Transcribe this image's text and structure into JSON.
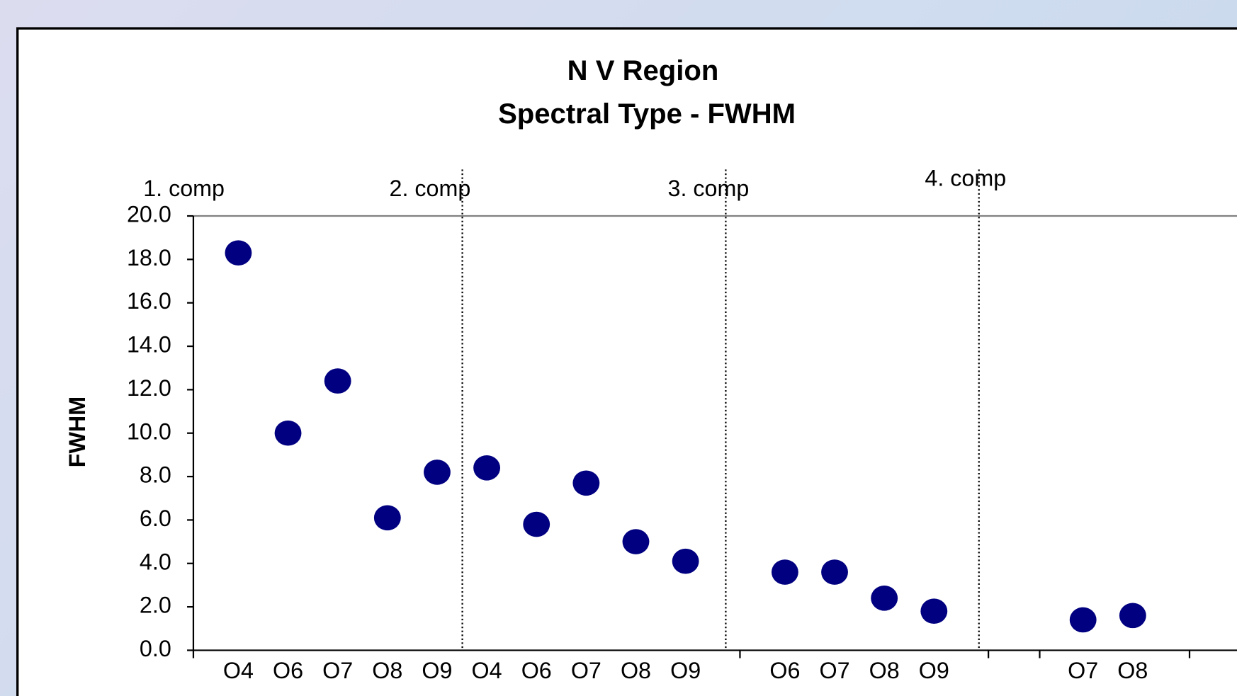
{
  "chart_data": {
    "type": "scatter",
    "title": "N V Region",
    "subtitle": "Spectral Type - FWHM",
    "y_label": "FWHM",
    "annotations": [
      "1. comp",
      "2. comp",
      "3. comp",
      "4. comp"
    ],
    "categories": [
      "O4",
      "O6",
      "O7",
      "O8",
      "O9",
      "O4",
      "O6",
      "O7",
      "O8",
      "O9",
      null,
      "O6",
      "O7",
      "O8",
      "O9",
      null,
      null,
      "O7",
      "O8"
    ],
    "values": [
      18.3,
      10.0,
      12.4,
      6.1,
      8.2,
      8.4,
      5.8,
      7.7,
      5.0,
      4.1,
      null,
      3.6,
      3.6,
      2.4,
      1.8,
      null,
      null,
      1.4,
      1.6
    ],
    "color": "#000080",
    "ylim": [
      0,
      20
    ],
    "yticks": [
      {
        "value": 0,
        "label": "0.0"
      },
      {
        "value": 2,
        "label": "2.0"
      },
      {
        "value": 4,
        "label": "4.0"
      },
      {
        "value": 6,
        "label": "6.0"
      },
      {
        "value": 8,
        "label": "8.0"
      },
      {
        "value": 10,
        "label": "10.0"
      },
      {
        "value": 12,
        "label": "12.0"
      },
      {
        "value": 14,
        "label": "14.0"
      },
      {
        "value": 16,
        "label": "16.0"
      },
      {
        "value": 18,
        "label": "18.0"
      },
      {
        "value": 20,
        "label": "20.0"
      }
    ],
    "grid": false
  }
}
